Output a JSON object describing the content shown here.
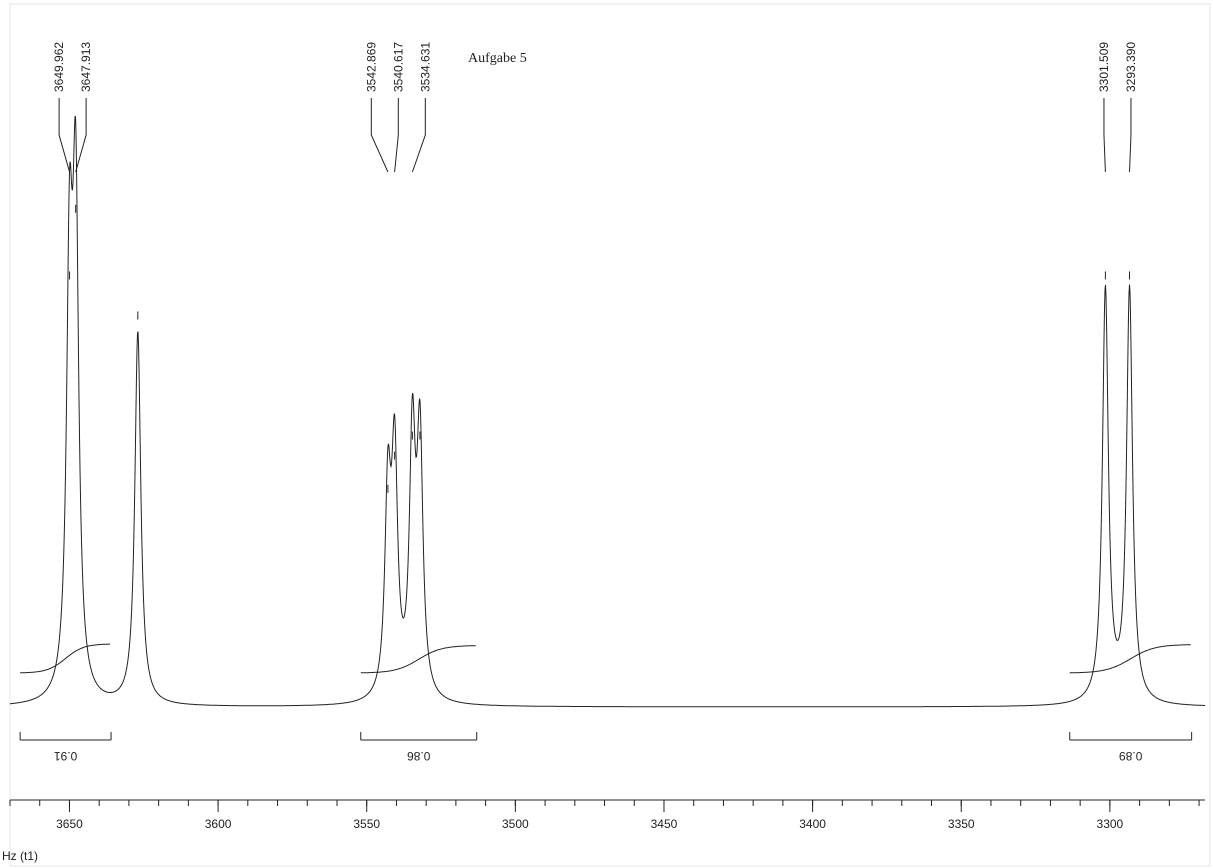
{
  "chart_data": {
    "type": "nmr",
    "title": "Aufgabe 5",
    "x_label": "Hz (t1)",
    "xlim": [
      3670,
      3268
    ],
    "xticks": [
      3650,
      3600,
      3550,
      3500,
      3450,
      3400,
      3350,
      3300
    ],
    "peaks": {
      "x": [
        3649.962,
        3647.913,
        3627,
        3542.869,
        3540.617,
        3534.631,
        3532.1,
        3301.509,
        3293.39
      ],
      "value_labels": [
        "3649.962",
        "3647.913",
        null,
        "3542.869",
        "3540.617",
        "3534.631",
        null,
        "3301.509",
        "3293.390"
      ],
      "intensity": [
        62,
        72,
        56,
        30,
        35,
        38,
        38,
        62,
        62
      ]
    },
    "integrals": {
      "ranges": [
        [
          3666.6,
          3636
        ],
        [
          3552,
          3513
        ],
        [
          3313.5,
          3272.5
        ]
      ],
      "values": [
        0.91,
        0.86,
        0.89
      ]
    },
    "color": "#222222"
  }
}
